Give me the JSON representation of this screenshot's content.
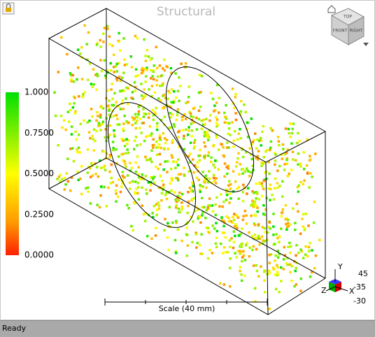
{
  "title": "Structural",
  "legend": {
    "labels": [
      "1.000",
      "0.7500",
      "0.5000",
      "0.2500",
      "0.0000"
    ]
  },
  "scale": "Scale (40 mm)",
  "triad": {
    "axes": [
      "Y",
      "X",
      "Z"
    ],
    "angles": [
      "45",
      "-35",
      "-30"
    ]
  },
  "view_cube": {
    "faces": [
      "TOP",
      "FRONT",
      "RIGHT"
    ]
  },
  "status": "Ready"
}
